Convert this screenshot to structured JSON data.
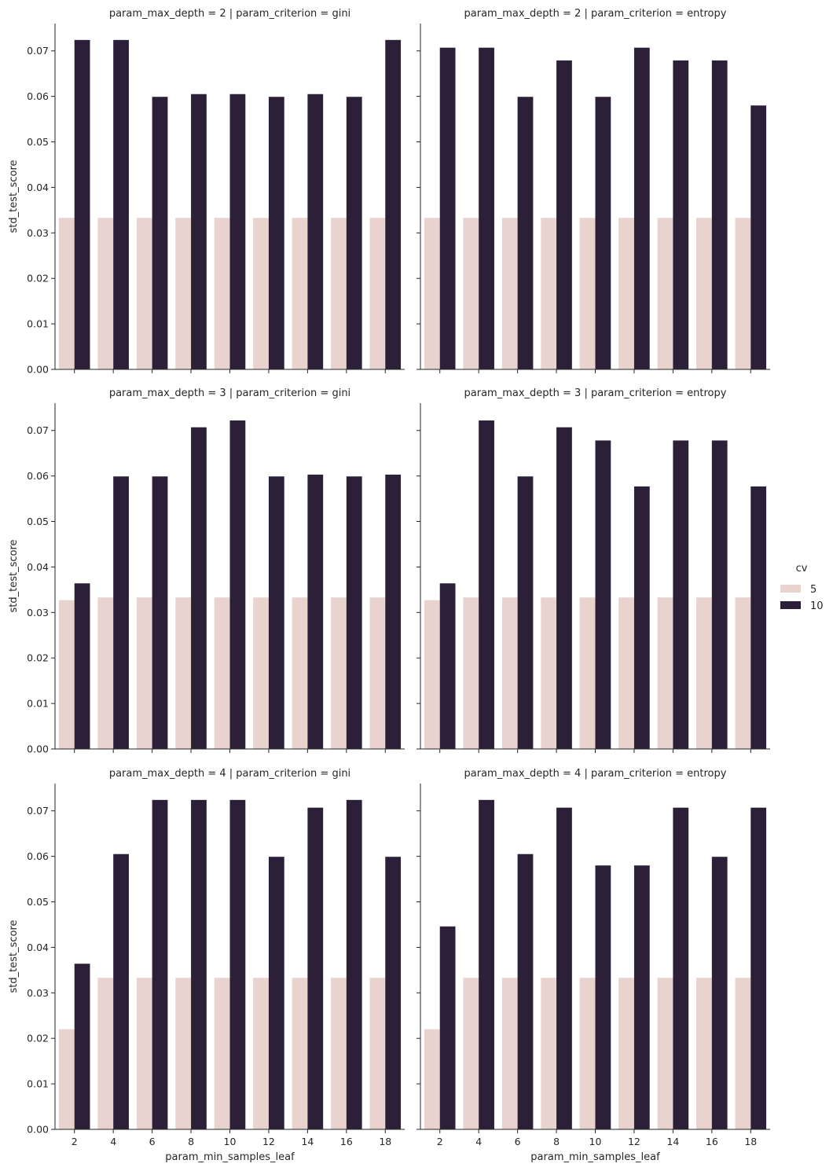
{
  "chart_data": {
    "type": "bar",
    "figure": "faceted grouped bar chart (seaborn catplot)",
    "x_label": "param_min_samples_leaf",
    "y_label": "std_test_score",
    "categories": [
      "2",
      "4",
      "6",
      "8",
      "10",
      "12",
      "14",
      "16",
      "18"
    ],
    "ylim": [
      0,
      0.076
    ],
    "y_ticks": [
      "0.00",
      "0.01",
      "0.02",
      "0.03",
      "0.04",
      "0.05",
      "0.06",
      "0.07"
    ],
    "grid": false,
    "legend": {
      "title": "cv",
      "placement": "right",
      "entries": [
        {
          "label": "5",
          "color": "#e8d3cf"
        },
        {
          "label": "10",
          "color": "#2c2038"
        }
      ]
    },
    "facets": [
      {
        "title": "param_max_depth = 2 | param_criterion = gini",
        "series": [
          {
            "name": "5",
            "values": [
              0.0333,
              0.0333,
              0.0333,
              0.0333,
              0.0333,
              0.0333,
              0.0333,
              0.0333,
              0.0333
            ]
          },
          {
            "name": "10",
            "values": [
              0.0724,
              0.0724,
              0.0599,
              0.0605,
              0.0605,
              0.0599,
              0.0605,
              0.0599,
              0.0724
            ]
          }
        ]
      },
      {
        "title": "param_max_depth = 2 | param_criterion = entropy",
        "series": [
          {
            "name": "5",
            "values": [
              0.0333,
              0.0333,
              0.0333,
              0.0333,
              0.0333,
              0.0333,
              0.0333,
              0.0333,
              0.0333
            ]
          },
          {
            "name": "10",
            "values": [
              0.0707,
              0.0707,
              0.0599,
              0.0679,
              0.0599,
              0.0707,
              0.0679,
              0.0679,
              0.058
            ]
          }
        ]
      },
      {
        "title": "param_max_depth = 3 | param_criterion = gini",
        "series": [
          {
            "name": "5",
            "values": [
              0.0327,
              0.0333,
              0.0333,
              0.0333,
              0.0333,
              0.0333,
              0.0333,
              0.0333,
              0.0333
            ]
          },
          {
            "name": "10",
            "values": [
              0.0364,
              0.0599,
              0.0599,
              0.0707,
              0.0722,
              0.0599,
              0.0603,
              0.0599,
              0.0603
            ]
          }
        ]
      },
      {
        "title": "param_max_depth = 3 | param_criterion = entropy",
        "series": [
          {
            "name": "5",
            "values": [
              0.0327,
              0.0333,
              0.0333,
              0.0333,
              0.0333,
              0.0333,
              0.0333,
              0.0333,
              0.0333
            ]
          },
          {
            "name": "10",
            "values": [
              0.0364,
              0.0722,
              0.0599,
              0.0707,
              0.0678,
              0.0577,
              0.0678,
              0.0678,
              0.0577
            ]
          }
        ]
      },
      {
        "title": "param_max_depth = 4 | param_criterion = gini",
        "series": [
          {
            "name": "5",
            "values": [
              0.022,
              0.0333,
              0.0333,
              0.0333,
              0.0333,
              0.0333,
              0.0333,
              0.0333,
              0.0333
            ]
          },
          {
            "name": "10",
            "values": [
              0.0364,
              0.0605,
              0.0724,
              0.0724,
              0.0724,
              0.0599,
              0.0707,
              0.0724,
              0.0599
            ]
          }
        ]
      },
      {
        "title": "param_max_depth = 4 | param_criterion = entropy",
        "series": [
          {
            "name": "5",
            "values": [
              0.022,
              0.0333,
              0.0333,
              0.0333,
              0.0333,
              0.0333,
              0.0333,
              0.0333,
              0.0333
            ]
          },
          {
            "name": "10",
            "values": [
              0.0446,
              0.0724,
              0.0605,
              0.0707,
              0.058,
              0.058,
              0.0707,
              0.0599,
              0.0707
            ]
          }
        ]
      }
    ]
  }
}
